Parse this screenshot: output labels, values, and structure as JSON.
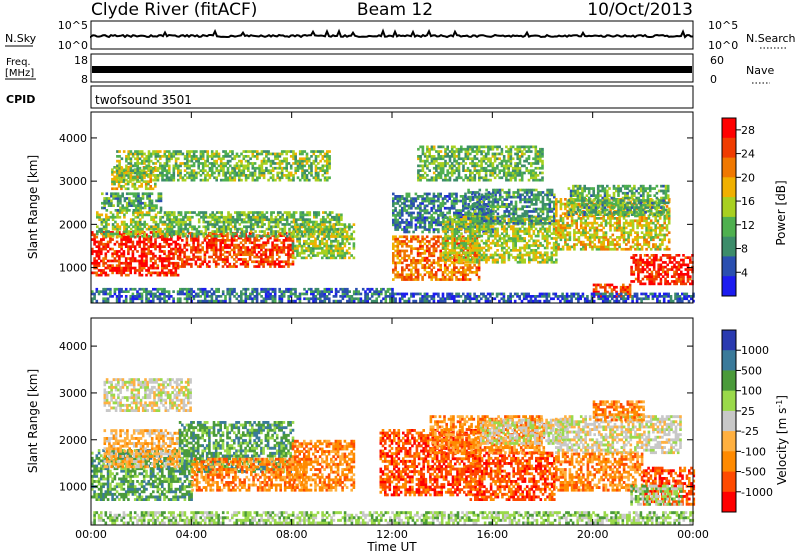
{
  "header": {
    "station": "Clyde River (fitACF)",
    "beam": "Beam 12",
    "date": "10/Oct/2013"
  },
  "strips": {
    "nsky_label": "N.Sky",
    "nsky_ticks": [
      "10^5",
      "10^0"
    ],
    "nsearch_label": "N.Search",
    "nsearch_ticks": [
      "10^5",
      "10^0"
    ],
    "freq_label": "Freq.",
    "freq_unit": "[MHz]",
    "freq_ticks": [
      "18",
      "8"
    ],
    "nave_label": "Nave",
    "nave_ticks": [
      "60",
      "0"
    ],
    "cpid_label": "CPID",
    "cpid_value": "twofsound 3501"
  },
  "colors": {
    "frame": "#000000",
    "power_scale": [
      "#1c1cf0",
      "#2a4fb0",
      "#3c8c6a",
      "#4fb04f",
      "#a8d020",
      "#f0b000",
      "#f07800",
      "#f03c00",
      "#ff0000"
    ],
    "velocity_scale": [
      "#ff0000",
      "#ff4a00",
      "#ff8a00",
      "#ffb040",
      "#c8c8c8",
      "#9ad94a",
      "#4a9a3a",
      "#3a7a9a",
      "#2a3ab0"
    ]
  },
  "chart_data": [
    {
      "type": "heatmap",
      "panel": "power",
      "xlabel": "",
      "ylabel": "Slant Range [km]",
      "xlim": [
        "00:00",
        "24:00"
      ],
      "ylim": [
        180,
        4600
      ],
      "yticks": [
        "1000",
        "2000",
        "3000",
        "4000"
      ],
      "colorbar_label": "Power [dB]",
      "colorbar_ticks": [
        "4",
        "8",
        "12",
        "16",
        "20",
        "24",
        "28"
      ],
      "colorbar_range": [
        0,
        30
      ],
      "regions": [
        {
          "t0": 0.0,
          "t1": 3.5,
          "r0": 800,
          "r1": 1800,
          "level": 27
        },
        {
          "t0": 0.2,
          "t1": 3.2,
          "r0": 1700,
          "r1": 2300,
          "level": 14
        },
        {
          "t0": 0.4,
          "t1": 2.8,
          "r0": 2300,
          "r1": 2700,
          "level": 10
        },
        {
          "t0": 0.8,
          "t1": 2.6,
          "r0": 2800,
          "r1": 3300,
          "level": 16
        },
        {
          "t0": 3.5,
          "t1": 8.0,
          "r0": 1000,
          "r1": 1800,
          "level": 25
        },
        {
          "t0": 3.0,
          "t1": 10.0,
          "r0": 1700,
          "r1": 2300,
          "level": 12
        },
        {
          "t0": 8.0,
          "t1": 10.5,
          "r0": 1200,
          "r1": 2000,
          "level": 14
        },
        {
          "t0": 0.0,
          "t1": 12.0,
          "r0": 200,
          "r1": 480,
          "level": 7
        },
        {
          "t0": 12.0,
          "t1": 15.5,
          "r0": 700,
          "r1": 1700,
          "level": 22
        },
        {
          "t0": 12.0,
          "t1": 16.0,
          "r0": 1800,
          "r1": 2700,
          "level": 8
        },
        {
          "t0": 14.0,
          "t1": 18.5,
          "r0": 1100,
          "r1": 2200,
          "level": 15
        },
        {
          "t0": 15.0,
          "t1": 18.5,
          "r0": 2000,
          "r1": 2800,
          "level": 9
        },
        {
          "t0": 18.5,
          "t1": 23.0,
          "r0": 1400,
          "r1": 2600,
          "level": 17
        },
        {
          "t0": 19.0,
          "t1": 23.0,
          "r0": 2200,
          "r1": 2900,
          "level": 11
        },
        {
          "t0": 21.5,
          "t1": 24.0,
          "r0": 600,
          "r1": 1300,
          "level": 27
        },
        {
          "t0": 20.0,
          "t1": 21.5,
          "r0": 300,
          "r1": 600,
          "level": 25
        },
        {
          "t0": 12.0,
          "t1": 24.0,
          "r0": 200,
          "r1": 400,
          "level": 5
        },
        {
          "t0": 1.0,
          "t1": 9.5,
          "r0": 3000,
          "r1": 3700,
          "level": 13
        },
        {
          "t0": 13.0,
          "t1": 18.0,
          "r0": 3000,
          "r1": 3800,
          "level": 12
        }
      ]
    },
    {
      "type": "heatmap",
      "panel": "velocity",
      "xlabel": "Time UT",
      "ylabel": "Slant Range [km]",
      "xlim": [
        "00:00",
        "24:00"
      ],
      "xticks": [
        "00:00",
        "04:00",
        "08:00",
        "12:00",
        "16:00",
        "20:00",
        "00:00"
      ],
      "ylim": [
        180,
        4600
      ],
      "yticks": [
        "1000",
        "2000",
        "3000",
        "4000"
      ],
      "colorbar_label": "Velocity",
      "colorbar_unit": "[m s",
      "colorbar_unit_exp": "-1",
      "colorbar_ticks": [
        "1000",
        "500",
        "100",
        "25",
        "-25",
        "-100",
        "-500",
        "-1000"
      ],
      "regions": [
        {
          "t0": 0.0,
          "t1": 4.0,
          "r0": 700,
          "r1": 1800,
          "level": 2
        },
        {
          "t0": 0.5,
          "t1": 3.5,
          "r0": 1400,
          "r1": 2200,
          "level": -1
        },
        {
          "t0": 3.5,
          "t1": 8.0,
          "r0": 1300,
          "r1": 2400,
          "level": 2
        },
        {
          "t0": 4.0,
          "t1": 8.5,
          "r0": 900,
          "r1": 1600,
          "level": -2
        },
        {
          "t0": 8.0,
          "t1": 10.5,
          "r0": 900,
          "r1": 2000,
          "level": -2
        },
        {
          "t0": 0.5,
          "t1": 4.0,
          "r0": 2600,
          "r1": 3300,
          "level": 0
        },
        {
          "t0": 11.5,
          "t1": 15.5,
          "r0": 800,
          "r1": 2200,
          "level": -3
        },
        {
          "t0": 15.0,
          "t1": 18.5,
          "r0": 700,
          "r1": 1700,
          "level": -3
        },
        {
          "t0": 13.5,
          "t1": 18.0,
          "r0": 1700,
          "r1": 2500,
          "level": -2
        },
        {
          "t0": 15.5,
          "t1": 19.0,
          "r0": 1900,
          "r1": 2400,
          "level": 0
        },
        {
          "t0": 18.5,
          "t1": 23.5,
          "r0": 1700,
          "r1": 2500,
          "level": 0
        },
        {
          "t0": 18.5,
          "t1": 22.0,
          "r0": 900,
          "r1": 1700,
          "level": -2
        },
        {
          "t0": 22.0,
          "t1": 24.0,
          "r0": 600,
          "r1": 1400,
          "level": -3
        },
        {
          "t0": 21.5,
          "t1": 23.5,
          "r0": 600,
          "r1": 1000,
          "level": 1
        },
        {
          "t0": 0.0,
          "t1": 24.0,
          "r0": 200,
          "r1": 450,
          "level": 1
        },
        {
          "t0": 20.0,
          "t1": 22.0,
          "r0": 2400,
          "r1": 2800,
          "level": -2
        }
      ]
    }
  ]
}
